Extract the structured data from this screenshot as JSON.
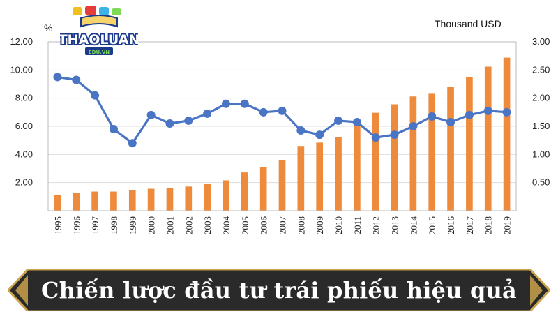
{
  "chart_data": {
    "type": "bar+line",
    "y_left_unit": "%",
    "y_right_unit": "Thousand USD",
    "y_left_ticks": [
      "12.00",
      "10.00",
      "8.00",
      "6.00",
      "4.00",
      "2.00",
      "-"
    ],
    "y_right_ticks": [
      "3.00",
      "2.50",
      "2.00",
      "1.50",
      "1.00",
      "0.50",
      "-"
    ],
    "ylim_left": [
      0,
      12
    ],
    "ylim_right": [
      0,
      3
    ],
    "categories": [
      "1995",
      "1996",
      "1997",
      "1998",
      "1999",
      "2000",
      "2001",
      "2002",
      "2003",
      "2004",
      "2005",
      "2006",
      "2007",
      "2008",
      "2009",
      "2010",
      "2011",
      "2012",
      "2013",
      "2014",
      "2015",
      "2016",
      "2017",
      "2018",
      "2019"
    ],
    "bar_series": {
      "axis": "right",
      "color": "#ee8a3c",
      "values": [
        0.28,
        0.32,
        0.34,
        0.34,
        0.36,
        0.39,
        0.4,
        0.43,
        0.48,
        0.54,
        0.68,
        0.78,
        0.9,
        1.15,
        1.21,
        1.31,
        1.58,
        1.74,
        1.89,
        2.03,
        2.09,
        2.2,
        2.37,
        2.56,
        2.72
      ]
    },
    "line_series": {
      "axis": "left",
      "color": "#4a74c4",
      "values": [
        9.5,
        9.3,
        8.2,
        5.8,
        4.8,
        6.8,
        6.2,
        6.4,
        6.9,
        7.6,
        7.6,
        7.0,
        7.1,
        5.7,
        5.4,
        6.4,
        6.3,
        5.2,
        5.4,
        6.0,
        6.7,
        6.3,
        6.8,
        7.1,
        7.0
      ]
    },
    "grid": true
  },
  "logo": {
    "text": "THAOLUAN",
    "subtext": "EDU.VN"
  },
  "banner": {
    "title": "Chiến lược đầu tư trái phiếu hiệu quả"
  },
  "colors": {
    "grid": "#dddddd",
    "banner_bg": "#2a2a2a",
    "banner_border": "#c9a24a",
    "logo_blue": "#1b3a8c",
    "logo_green": "#7ed957"
  }
}
